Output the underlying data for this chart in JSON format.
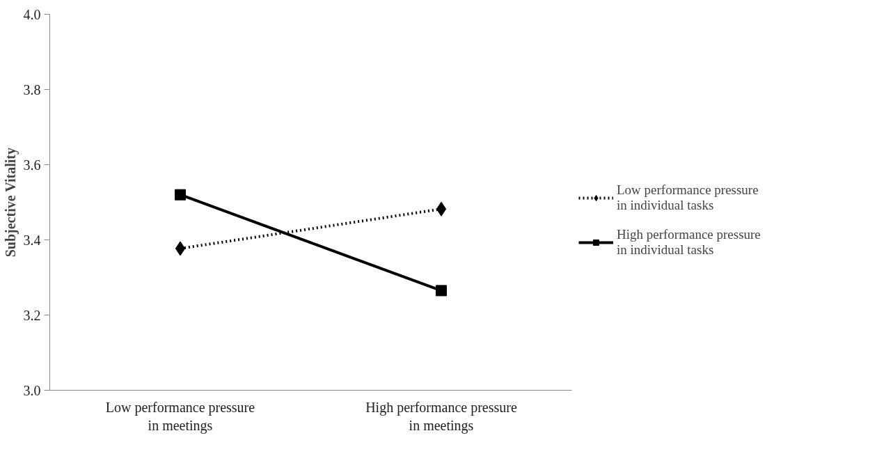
{
  "chart_data": {
    "type": "line",
    "ylabel": "Subjective Vitality",
    "categories": [
      "Low performance pressure\nin meetings",
      "High performance pressure\nin meetings"
    ],
    "series": [
      {
        "name": "Low performance pressure\nin individual tasks",
        "color": "#000000",
        "values": [
          3.377,
          3.482
        ],
        "marker": "diamond",
        "line_style": "dotted"
      },
      {
        "name": "High performance pressure\nin individual tasks",
        "color": "#000000",
        "values": [
          3.52,
          3.265
        ],
        "marker": "square",
        "line_style": "solid"
      }
    ],
    "ylim": [
      3.0,
      4.0
    ],
    "yticks": [
      {
        "value": 3,
        "label": "3.0"
      },
      3.2,
      3.4,
      3.6,
      3.8,
      {
        "value": 4,
        "label": "4.0"
      }
    ],
    "grid": false,
    "legend": "right"
  }
}
